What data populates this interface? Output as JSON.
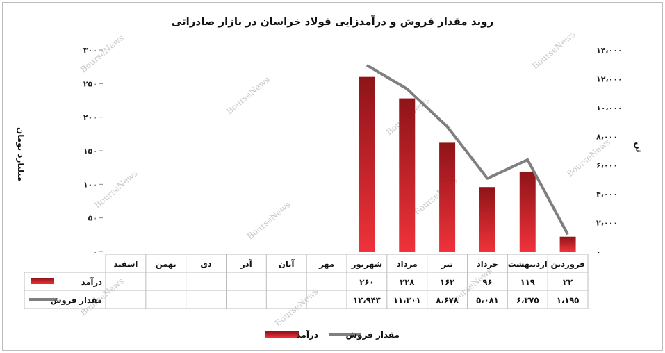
{
  "chart_data": {
    "type": "bar",
    "title": "روند مقدار فروش و درآمدزایی فولاد خراسان در بازار صادراتی",
    "ylabel": "میلیارد تومان",
    "ylabel_right": "تن",
    "categories": [
      "فروردین",
      "اردیبهشت",
      "خرداد",
      "تیر",
      "مرداد",
      "شهریور",
      "مهر",
      "آبان",
      "آذر",
      "دی",
      "بهمن",
      "اسفند"
    ],
    "ylim": [
      0,
      300
    ],
    "yticks": [
      "۰",
      "۵۰",
      "۱۰۰",
      "۱۵۰",
      "۲۰۰",
      "۲۵۰",
      "۳۰۰"
    ],
    "ylim_right": [
      0,
      14000
    ],
    "yticks_right": [
      "۰",
      "۲،۰۰۰",
      "۴،۰۰۰",
      "۶،۰۰۰",
      "۸،۰۰۰",
      "۱۰،۰۰۰",
      "۱۲،۰۰۰",
      "۱۴،۰۰۰"
    ],
    "series": [
      {
        "name": "درآمد",
        "type": "bar",
        "axis": "left",
        "color": "#d31f26",
        "values": [
          22,
          119,
          96,
          162,
          228,
          260,
          null,
          null,
          null,
          null,
          null,
          null
        ],
        "labels": [
          "۲۲",
          "۱۱۹",
          "۹۶",
          "۱۶۲",
          "۲۲۸",
          "۲۶۰",
          "",
          "",
          "",
          "",
          "",
          ""
        ]
      },
      {
        "name": "مقدار فروش",
        "type": "line",
        "axis": "right",
        "color": "#7f7f7f",
        "values": [
          1195,
          6375,
          5081,
          8678,
          11301,
          12943,
          null,
          null,
          null,
          null,
          null,
          null
        ],
        "labels": [
          "۱،۱۹۵",
          "۶،۳۷۵",
          "۵،۰۸۱",
          "۸،۶۷۸",
          "۱۱،۳۰۱",
          "۱۲،۹۴۳",
          "",
          "",
          "",
          "",
          "",
          ""
        ]
      }
    ],
    "legend_position": "bottom",
    "grid": false
  },
  "watermark": "BourseNews"
}
